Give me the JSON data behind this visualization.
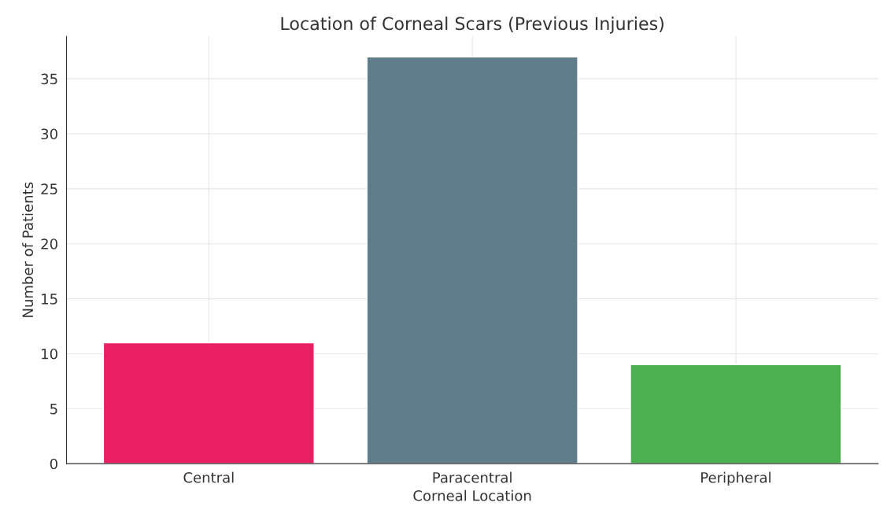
{
  "chart_data": {
    "type": "bar",
    "title": "Location of Corneal Scars (Previous Injuries)",
    "xlabel": "Corneal Location",
    "ylabel": "Number of Patients",
    "categories": [
      "Central",
      "Paracentral",
      "Peripheral"
    ],
    "values": [
      11,
      37,
      9
    ],
    "colors": [
      "#e91e63",
      "#607d8b",
      "#4caf50"
    ],
    "ylim": [
      0,
      38.85
    ],
    "yticks": [
      0,
      5,
      10,
      15,
      20,
      25,
      30,
      35
    ],
    "grid": true
  }
}
